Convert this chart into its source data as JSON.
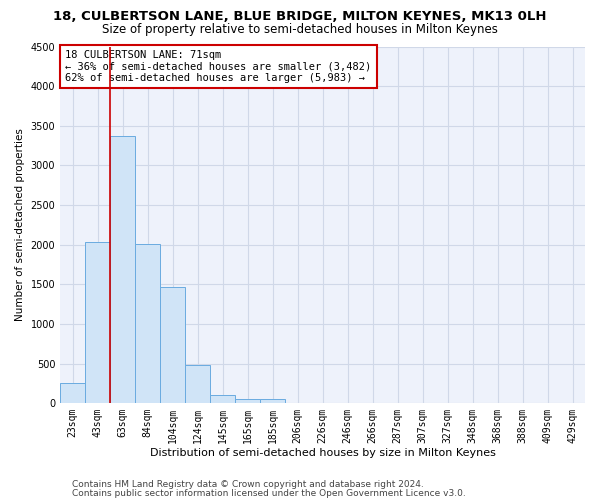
{
  "title": "18, CULBERTSON LANE, BLUE BRIDGE, MILTON KEYNES, MK13 0LH",
  "subtitle": "Size of property relative to semi-detached houses in Milton Keynes",
  "xlabel": "Distribution of semi-detached houses by size in Milton Keynes",
  "ylabel": "Number of semi-detached properties",
  "categories": [
    "23sqm",
    "43sqm",
    "63sqm",
    "84sqm",
    "104sqm",
    "124sqm",
    "145sqm",
    "165sqm",
    "185sqm",
    "206sqm",
    "226sqm",
    "246sqm",
    "266sqm",
    "287sqm",
    "307sqm",
    "327sqm",
    "348sqm",
    "368sqm",
    "388sqm",
    "409sqm",
    "429sqm"
  ],
  "values": [
    250,
    2030,
    3370,
    2010,
    1460,
    480,
    100,
    55,
    50,
    0,
    0,
    0,
    0,
    0,
    0,
    0,
    0,
    0,
    0,
    0,
    0
  ],
  "bar_color": "#d0e4f7",
  "bar_edge_color": "#6aabe0",
  "red_line_index": 2,
  "annotation_text": "18 CULBERTSON LANE: 71sqm\n← 36% of semi-detached houses are smaller (3,482)\n62% of semi-detached houses are larger (5,983) →",
  "annotation_box_color": "#ffffff",
  "annotation_box_edge_color": "#cc0000",
  "ylim": [
    0,
    4500
  ],
  "yticks": [
    0,
    500,
    1000,
    1500,
    2000,
    2500,
    3000,
    3500,
    4000,
    4500
  ],
  "grid_color": "#d0d8e8",
  "background_color": "#eef2fb",
  "footer_line1": "Contains HM Land Registry data © Crown copyright and database right 2024.",
  "footer_line2": "Contains public sector information licensed under the Open Government Licence v3.0.",
  "title_fontsize": 9.5,
  "subtitle_fontsize": 8.5,
  "xlabel_fontsize": 8,
  "ylabel_fontsize": 7.5,
  "tick_fontsize": 7,
  "annotation_fontsize": 7.5,
  "footer_fontsize": 6.5
}
